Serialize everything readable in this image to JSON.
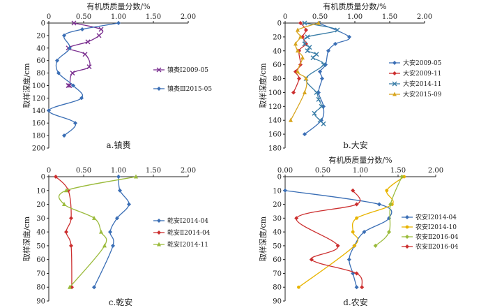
{
  "figure": {
    "type": "multi-panel depth-profile line charts",
    "panels_count": 4
  },
  "chart_data": [
    {
      "id": "a",
      "type": "line",
      "caption": "a.镇赉",
      "xlabel": "有机质质量分数/%",
      "ylabel": "取样深度/cm",
      "xlim": [
        0,
        2.0
      ],
      "ylim": [
        0,
        200
      ],
      "xticks": [
        "0",
        "0.50",
        "1.00",
        "1.50",
        "2.00"
      ],
      "yticks": [
        "0",
        "20",
        "40",
        "60",
        "80",
        "100",
        "120",
        "140",
        "160",
        "180",
        "200"
      ],
      "legend_position": "right",
      "series": [
        {
          "name": "镇赉Ⅰ2009-05",
          "color": "#7a2e8f",
          "marker": "x",
          "x": [
            0.36,
            0.75,
            0.72,
            0.56,
            0.28,
            0.52,
            0.58,
            0.34,
            0.3,
            0.28
          ],
          "y": [
            0,
            10,
            20,
            30,
            40,
            50,
            70,
            80,
            100,
            100
          ]
        },
        {
          "name": "镇赉Ⅲ2015-05",
          "color": "#3a6eb5",
          "marker": "diamond",
          "x": [
            1.0,
            0.48,
            0.22,
            0.3,
            0.12,
            0.14,
            0.35,
            0.47,
            0.0,
            0.38,
            0.22
          ],
          "y": [
            0,
            10,
            20,
            40,
            60,
            80,
            100,
            120,
            140,
            160,
            180
          ]
        }
      ]
    },
    {
      "id": "b",
      "type": "line",
      "caption": "b.大安",
      "xlabel": "有机质质量分数/%",
      "ylabel": "取样深度/cm",
      "xlim": [
        0,
        2.0
      ],
      "ylim": [
        0,
        180
      ],
      "xticks": [
        "0",
        "0.50",
        "1.00",
        "1.50",
        "2.00"
      ],
      "yticks": [
        "0",
        "20",
        "40",
        "60",
        "80",
        "100",
        "120",
        "140",
        "160",
        "180"
      ],
      "legend_position": "right",
      "series": [
        {
          "name": "大安2009-05",
          "color": "#3a6eb5",
          "marker": "diamond",
          "x": [
            0.48,
            0.92,
            0.72,
            0.62,
            0.58,
            0.5,
            0.53,
            0.48,
            0.55,
            0.52,
            0.28
          ],
          "y": [
            0,
            20,
            30,
            40,
            60,
            70,
            80,
            100,
            120,
            140,
            160
          ]
        },
        {
          "name": "大安2009-11",
          "color": "#cc2f2f",
          "marker": "diamond",
          "x": [
            0.22,
            0.3,
            0.25,
            0.3,
            0.2,
            0.22,
            0.15,
            0.2,
            0.12
          ],
          "y": [
            0,
            10,
            20,
            30,
            40,
            60,
            70,
            80,
            100
          ]
        },
        {
          "name": "大安2014-11",
          "color": "#3b7ea8",
          "marker": "x",
          "x": [
            0.28,
            0.75,
            0.32,
            0.28,
            0.35,
            0.32,
            0.45,
            0.4,
            0.55,
            0.3,
            0.45,
            0.48,
            0.52,
            0.42,
            0.5,
            0.55
          ],
          "y": [
            0,
            10,
            20,
            30,
            35,
            40,
            45,
            50,
            60,
            80,
            100,
            110,
            120,
            130,
            140,
            145
          ]
        },
        {
          "name": "大安2015-09",
          "color": "#d8a51f",
          "marker": "triangle",
          "x": [
            0.48,
            0.18,
            0.22,
            0.15,
            0.18,
            0.25,
            0.18,
            0.3,
            0.28,
            0.08
          ],
          "y": [
            0,
            10,
            20,
            30,
            40,
            50,
            70,
            80,
            100,
            140
          ]
        }
      ]
    },
    {
      "id": "c",
      "type": "line",
      "caption": "c.乾安",
      "xlabel": "",
      "ylabel": "取样深度/cm",
      "xlim": [
        0,
        2.0
      ],
      "ylim": [
        0,
        90
      ],
      "xticks": [
        "0",
        "0.50",
        "1.00",
        "1.50",
        "2.00"
      ],
      "yticks": [
        "0",
        "10",
        "20",
        "30",
        "40",
        "50",
        "60",
        "70",
        "80",
        "90"
      ],
      "legend_position": "right",
      "series": [
        {
          "name": "乾安Ⅰ2014-04",
          "color": "#3a6eb5",
          "marker": "diamond",
          "x": [
            1.0,
            1.02,
            1.15,
            0.98,
            0.88,
            0.92,
            0.65
          ],
          "y": [
            0,
            10,
            20,
            30,
            40,
            50,
            80
          ]
        },
        {
          "name": "乾安Ⅱ2014-04",
          "color": "#cc2f2f",
          "marker": "diamond",
          "x": [
            0.1,
            0.28,
            0.32,
            0.25,
            0.32,
            0.33
          ],
          "y": [
            0,
            10,
            30,
            40,
            50,
            80
          ]
        },
        {
          "name": "乾安Ⅰ2014-11",
          "color": "#9bbb3c",
          "marker": "triangle",
          "x": [
            1.25,
            0.25,
            0.22,
            0.65,
            0.75,
            0.8,
            0.3
          ],
          "y": [
            0,
            10,
            20,
            30,
            40,
            50,
            80
          ]
        }
      ]
    },
    {
      "id": "d",
      "type": "line",
      "caption": "d.农安",
      "xlabel": "有机质质量分数/%",
      "ylabel": "取样深度/cm",
      "xlim": [
        0,
        2.0
      ],
      "ylim": [
        0,
        90
      ],
      "xticks": [
        "0.00",
        "0.50",
        "1.00",
        "1.50",
        "2.00"
      ],
      "yticks": [
        "0",
        "10",
        "20",
        "30",
        "40",
        "50",
        "60",
        "70",
        "80",
        "90"
      ],
      "legend_position": "right",
      "series": [
        {
          "name": "农安Ⅰ2014-04",
          "color": "#3a6eb5",
          "marker": "diamond",
          "x": [
            0.0,
            1.25,
            1.38,
            1.05,
            0.92,
            0.85,
            0.9,
            0.95
          ],
          "y": [
            10,
            20,
            30,
            40,
            50,
            60,
            70,
            80
          ]
        },
        {
          "name": "农安Ⅰ2014-10",
          "color": "#e8b400",
          "marker": "circle",
          "x": [
            1.58,
            1.35,
            1.42,
            0.95,
            0.9,
            0.92,
            0.18
          ],
          "y": [
            0,
            10,
            20,
            30,
            40,
            50,
            80
          ]
        },
        {
          "name": "农安Ⅱ2016-04",
          "color": "#9bbb3c",
          "marker": "diamond",
          "x": [
            1.55,
            1.4,
            1.38,
            1.2
          ],
          "y": [
            0,
            20,
            40,
            50
          ]
        },
        {
          "name": "农安Ⅱ2016-04",
          "color": "#cc2f2f",
          "marker": "diamond",
          "x": [
            0.9,
            0.95,
            0.15,
            0.7,
            0.35,
            0.95,
            1.02
          ],
          "y": [
            10,
            20,
            30,
            50,
            60,
            70,
            80
          ]
        }
      ]
    }
  ]
}
